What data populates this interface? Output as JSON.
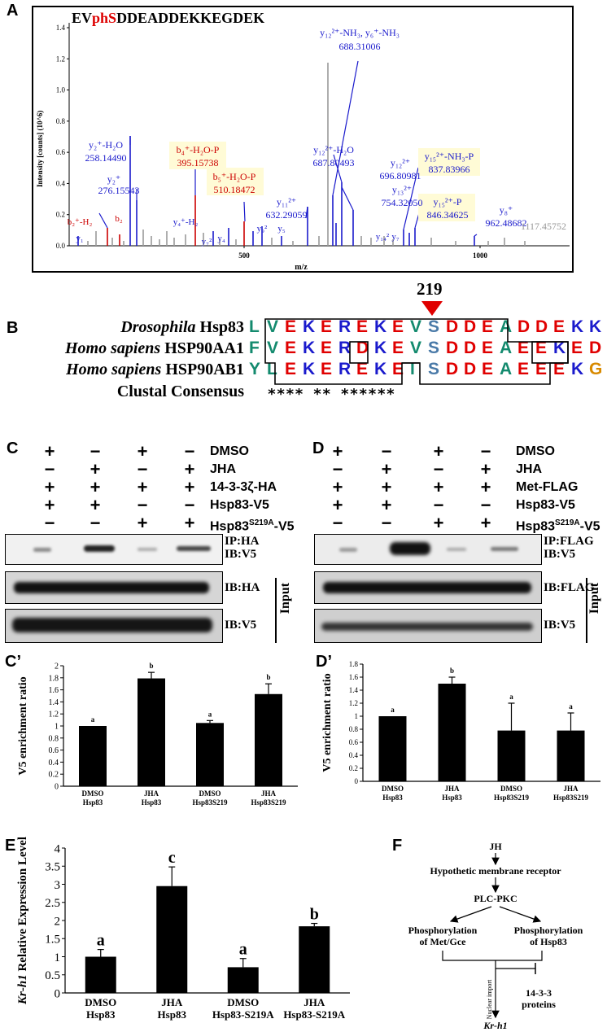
{
  "panels": {
    "A": "A",
    "B": "B",
    "C": "C",
    "D": "D",
    "Cp": "C’",
    "Dp": "D’",
    "E": "E",
    "F": "F"
  },
  "panelA": {
    "peptide_pre": "EV",
    "peptide_phos": "phS",
    "peptide_post": "DDEADDEKKEGDEK",
    "ylabel": "Intensity [counts] (10^6)",
    "xlabel": "m/z",
    "yticks": [
      "0.0",
      "0.2",
      "0.4",
      "0.6",
      "0.8",
      "1.0",
      "1.2",
      "1.4"
    ],
    "xticks": [
      "500",
      "1000"
    ],
    "annotations": [
      {
        "text": "y₁₂²⁺-NH₃, y₆⁺-NH₃",
        "color": "#1a1acc"
      },
      {
        "text": "688.31006",
        "color": "#1a1acc"
      },
      {
        "text": "y₂⁺-H₂O",
        "color": "#1a1acc"
      },
      {
        "text": "258.14490",
        "color": "#1a1acc"
      },
      {
        "text": "y₂⁺",
        "color": "#1a1acc"
      },
      {
        "text": "276.15543",
        "color": "#1a1acc"
      },
      {
        "text": "b₄⁺-H₂O-P",
        "color": "#cc0000"
      },
      {
        "text": "395.15738",
        "color": "#cc0000"
      },
      {
        "text": "b₅⁺-H₂O-P",
        "color": "#cc0000"
      },
      {
        "text": "510.18472",
        "color": "#cc0000"
      },
      {
        "text": "y₁₂²⁺-H₂O",
        "color": "#1a1acc"
      },
      {
        "text": "687.80493",
        "color": "#1a1acc"
      },
      {
        "text": "y₁₂²⁺",
        "color": "#1a1acc"
      },
      {
        "text": "696.80981",
        "color": "#1a1acc"
      },
      {
        "text": "y₁₃²⁺",
        "color": "#1a1acc"
      },
      {
        "text": "754.32050",
        "color": "#1a1acc"
      },
      {
        "text": "y₁₅²⁺-NH₃-P",
        "color": "#1a1acc"
      },
      {
        "text": "837.83966",
        "color": "#1a1acc"
      },
      {
        "text": "y₁₅²⁺-P",
        "color": "#1a1acc"
      },
      {
        "text": "846.34625",
        "color": "#1a1acc"
      },
      {
        "text": "y₁₁²⁺",
        "color": "#1a1acc"
      },
      {
        "text": "632.29059",
        "color": "#1a1acc"
      },
      {
        "text": "y₈⁺",
        "color": "#1a1acc"
      },
      {
        "text": "962.48682",
        "color": "#1a1acc"
      },
      {
        "text": "1117.45752",
        "color": "#999999"
      },
      {
        "text": "b₂⁺-H₂",
        "color": "#cc0000"
      },
      {
        "text": "b₂",
        "color": "#cc0000"
      },
      {
        "text": "y₁",
        "color": "#1a1acc"
      },
      {
        "text": "y₄⁺-H₂",
        "color": "#1a1acc"
      },
      {
        "text": "y₇²",
        "color": "#1a1acc"
      },
      {
        "text": "y₄",
        "color": "#1a1acc"
      },
      {
        "text": "y₉²",
        "color": "#1a1acc"
      },
      {
        "text": "y₅",
        "color": "#1a1acc"
      },
      {
        "text": "y₁₄²",
        "color": "#1a1acc"
      },
      {
        "text": "y₇",
        "color": "#1a1acc"
      }
    ]
  },
  "panelB": {
    "site": "219",
    "rows": [
      {
        "label_italic": "Drosophila",
        "label_rest": " Hsp83",
        "seq": "LVEKEREKEVSDDEADDEKK"
      },
      {
        "label_italic": "Homo sapiens",
        "label_rest": " HSP90AA1",
        "seq": "FVEKERDKEVSDDEAEEKED"
      },
      {
        "label_italic": "Homo sapiens",
        "label_rest": " HSP90AB1",
        "seq": "YLEKEREKEISDDEAEEEKG"
      }
    ],
    "consensus_label": "Clustal Consensus",
    "consensus": "  **** ** ****** "
  },
  "panelC": {
    "rows": [
      {
        "label": "DMSO",
        "signs": [
          "+",
          "−",
          "+",
          "−"
        ]
      },
      {
        "label": "JHA",
        "signs": [
          "−",
          "+",
          "−",
          "+"
        ]
      },
      {
        "label": "14-3-3ζ-HA",
        "signs": [
          "+",
          "+",
          "+",
          "+"
        ]
      },
      {
        "label": "Hsp83-V5",
        "signs": [
          "+",
          "+",
          "−",
          "−"
        ]
      },
      {
        "label": "Hsp83",
        "label_sup": "S219A",
        "label_post": "-V5",
        "signs": [
          "−",
          "−",
          "+",
          "+"
        ]
      }
    ],
    "blot1_l1": "IP:HA",
    "blot1_l2": "IB:V5",
    "blot2": "IB:HA",
    "blot3": "IB:V5",
    "input": "Input"
  },
  "panelD": {
    "rows": [
      {
        "label": "DMSO",
        "signs": [
          "+",
          "−",
          "+",
          "−"
        ]
      },
      {
        "label": "JHA",
        "signs": [
          "−",
          "+",
          "−",
          "+"
        ]
      },
      {
        "label": "Met-FLAG",
        "signs": [
          "+",
          "+",
          "+",
          "+"
        ]
      },
      {
        "label": "Hsp83-V5",
        "signs": [
          "+",
          "+",
          "−",
          "−"
        ]
      },
      {
        "label": "Hsp83",
        "label_sup": "S219A",
        "label_post": "-V5",
        "signs": [
          "−",
          "−",
          "+",
          "+"
        ]
      }
    ],
    "blot1_l1": "IP:FLAG",
    "blot1_l2": "IB:V5",
    "blot2": "IB:FLAG",
    "blot3": "IB:V5",
    "input": "Input"
  },
  "chart_data": [
    {
      "type": "bar",
      "panel": "C’",
      "ylabel": "V5 enrichment ratio",
      "ylim": [
        0,
        2
      ],
      "yticks": [
        "0",
        "0.2",
        "0.4",
        "0.6",
        "0.8",
        "1",
        "1.2",
        "1.4",
        "1.6",
        "1.8",
        "2"
      ],
      "categories": [
        [
          "DMSO",
          "Hsp83"
        ],
        [
          "JHA",
          "Hsp83"
        ],
        [
          "DMSO",
          "Hsp83S219"
        ],
        [
          "JHA",
          "Hsp83S219"
        ]
      ],
      "values": [
        1.0,
        1.79,
        1.05,
        1.53
      ],
      "errors": [
        0,
        0.1,
        0.04,
        0.17
      ],
      "letters": [
        "a",
        "b",
        "a",
        "b"
      ]
    },
    {
      "type": "bar",
      "panel": "D’",
      "ylabel": "V5 enrichment ratio",
      "ylim": [
        0,
        1.8
      ],
      "yticks": [
        "0",
        "0.2",
        "0.4",
        "0.6",
        "0.8",
        "1",
        "1.2",
        "1.4",
        "1.6",
        "1.8"
      ],
      "categories": [
        [
          "DMSO",
          "Hsp83"
        ],
        [
          "JHA",
          "Hsp83"
        ],
        [
          "DMSO",
          "Hsp83S219"
        ],
        [
          "JHA",
          "Hsp83S219"
        ]
      ],
      "values": [
        1.0,
        1.5,
        0.78,
        0.78
      ],
      "errors": [
        0,
        0.1,
        0.42,
        0.27
      ],
      "letters": [
        "a",
        "b",
        "a",
        "a"
      ]
    },
    {
      "type": "bar",
      "panel": "E",
      "ylabel_italic": "Kr-h1",
      "ylabel_rest": " Relative Expression Level",
      "ylim": [
        0,
        4
      ],
      "yticks": [
        "0",
        "0.5",
        "1",
        "1.5",
        "2",
        "2.5",
        "3",
        "3.5",
        "4"
      ],
      "categories": [
        [
          "DMSO",
          "Hsp83"
        ],
        [
          "JHA",
          "Hsp83"
        ],
        [
          "DMSO",
          "Hsp83-S219A"
        ],
        [
          "JHA",
          "Hsp83-S219A"
        ]
      ],
      "values": [
        1.0,
        2.95,
        0.71,
        1.84
      ],
      "errors": [
        0.2,
        0.53,
        0.24,
        0.08
      ],
      "letters": [
        "a",
        "c",
        "a",
        "b"
      ]
    }
  ],
  "panelF": {
    "jh": "JH",
    "receptor": "Hypothetic membrane receptor",
    "plc": "PLC-PKC",
    "met_l1": "Phosphorylation",
    "met_l2": "of Met/Gce",
    "hsp_l1": "Phosphorylation",
    "hsp_l2": "of Hsp83",
    "nuclear": "Nuclear import",
    "p1433_l1": "14-3-3",
    "p1433_l2": "proteins",
    "kr": "Kr-h1"
  }
}
